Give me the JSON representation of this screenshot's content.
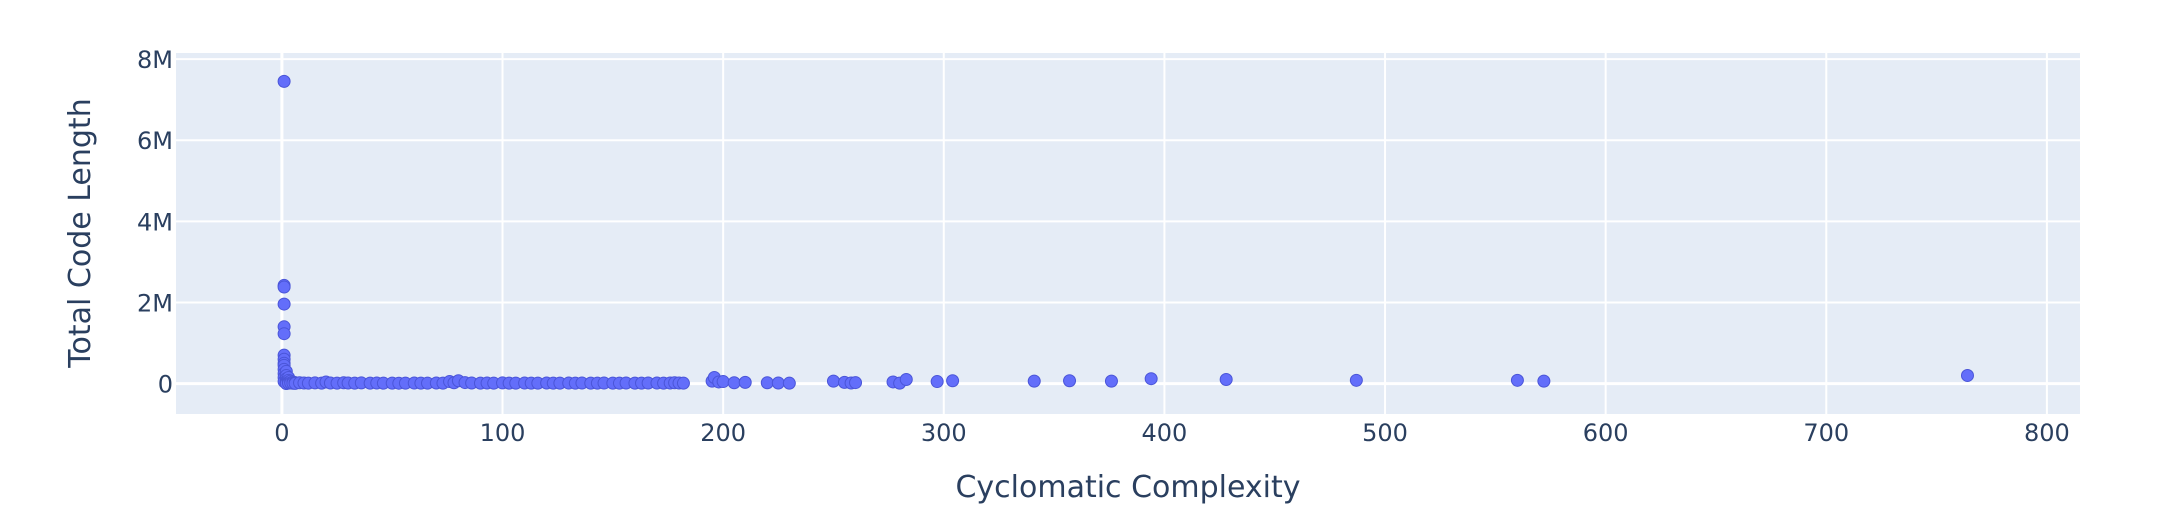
{
  "chart_data": {
    "type": "scatter",
    "title": "",
    "xlabel": "Cyclomatic Complexity",
    "ylabel": "Total Code Length",
    "xlim": [
      -48,
      815
    ],
    "ylim": [
      -750000,
      8150000
    ],
    "x_ticks": [
      {
        "value": 0,
        "label": "0"
      },
      {
        "value": 100,
        "label": "100"
      },
      {
        "value": 200,
        "label": "200"
      },
      {
        "value": 300,
        "label": "300"
      },
      {
        "value": 400,
        "label": "400"
      },
      {
        "value": 500,
        "label": "500"
      },
      {
        "value": 600,
        "label": "600"
      },
      {
        "value": 700,
        "label": "700"
      },
      {
        "value": 800,
        "label": "800"
      }
    ],
    "y_ticks": [
      {
        "value": 0,
        "label": "0"
      },
      {
        "value": 2000000,
        "label": "2M"
      },
      {
        "value": 4000000,
        "label": "4M"
      },
      {
        "value": 6000000,
        "label": "6M"
      },
      {
        "value": 8000000,
        "label": "8M"
      }
    ],
    "grid": true,
    "legend": "none",
    "colors": {
      "marker": "#636efa",
      "plot_bg": "#e5ecf6",
      "grid": "#ffffff",
      "text": "#2a3f5f"
    },
    "series": [
      {
        "x": [
          1,
          1,
          1,
          1,
          1,
          1,
          1,
          1,
          1,
          1,
          1,
          1,
          1,
          1,
          2,
          2,
          2,
          2,
          2,
          2,
          2,
          2,
          3,
          3,
          3,
          3,
          4,
          4,
          5,
          5,
          6,
          6,
          8,
          10,
          12,
          15,
          18,
          20,
          22,
          25,
          28,
          30,
          33,
          36,
          40,
          43,
          46,
          50,
          53,
          56,
          60,
          63,
          66,
          70,
          73,
          76,
          78,
          80,
          83,
          86,
          90,
          93,
          96,
          100,
          103,
          106,
          110,
          113,
          116,
          120,
          123,
          126,
          130,
          133,
          136,
          140,
          143,
          146,
          150,
          153,
          156,
          160,
          163,
          166,
          170,
          173,
          176,
          178,
          180,
          182,
          195,
          196,
          198,
          200,
          205,
          210,
          220,
          225,
          230,
          250,
          255,
          258,
          260,
          277,
          280,
          283,
          297,
          304,
          341,
          357,
          376,
          394,
          428,
          487,
          560,
          572,
          764
        ],
        "y": [
          7450000,
          2420000,
          2380000,
          1960000,
          1400000,
          1230000,
          700000,
          600000,
          500000,
          450000,
          350000,
          250000,
          150000,
          50000,
          300000,
          200000,
          120000,
          60000,
          20000,
          10000,
          5000,
          2000,
          150000,
          80000,
          30000,
          10000,
          60000,
          15000,
          40000,
          8000,
          25000,
          5000,
          20000,
          15000,
          10000,
          18000,
          12000,
          40000,
          15000,
          12000,
          20000,
          15000,
          10000,
          18000,
          12000,
          14000,
          10000,
          12000,
          9000,
          11000,
          13000,
          10000,
          12000,
          15000,
          11000,
          50000,
          20000,
          70000,
          25000,
          15000,
          12000,
          14000,
          10000,
          16000,
          12000,
          11000,
          13000,
          10000,
          12000,
          14000,
          11000,
          12000,
          13000,
          10000,
          15000,
          12000,
          11000,
          13000,
          12000,
          10000,
          14000,
          12000,
          11000,
          15000,
          13000,
          12000,
          14000,
          20000,
          15000,
          10000,
          60000,
          150000,
          40000,
          50000,
          20000,
          30000,
          20000,
          15000,
          10000,
          60000,
          30000,
          15000,
          25000,
          40000,
          10000,
          100000,
          50000,
          70000,
          60000,
          70000,
          60000,
          120000,
          100000,
          80000,
          80000,
          60000,
          200000
        ]
      }
    ]
  }
}
